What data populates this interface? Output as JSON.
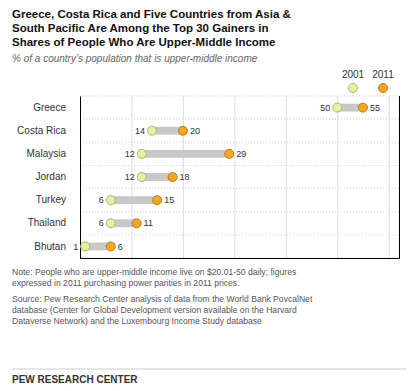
{
  "chart_data": {
    "type": "dumbbell",
    "orientation": "horizontal",
    "title": "Greece, Costa Rica and Five Countries from Asia &\nSouth Pacific Are Among the Top 30 Gainers in\nShares of People Who Are Upper-Middle Income",
    "subtitle": "% of a country’s population that is upper-middle income",
    "annotations": [
      "Note: People who are upper-middle income live on $20.01-50 daily; figures\nexpressed in 2011 purchasing power parities in 2011 prices.",
      "Source: Pew Research Center analysis of data from the World Bank PovcalNet\ndatabase (Center for Global Development version available on the Harvard\nDataverse Network) and the Luxembourg Income Study database",
      "PEW RESEARCH CENTER"
    ],
    "categories": [
      "Greece",
      "Costa Rica",
      "Malaysia",
      "Jordan",
      "Turkey",
      "Thailand",
      "Bhutan"
    ],
    "series": [
      {
        "name": "2001",
        "color": "#e8ef9e",
        "values": [
          50,
          14,
          12,
          12,
          6,
          6,
          1
        ]
      },
      {
        "name": "2011",
        "color": "#f5a623",
        "values": [
          55,
          20,
          29,
          18,
          15,
          11,
          6
        ]
      }
    ],
    "color": "#c8c8c8",
    "xlim": [
      0,
      62
    ],
    "xticks": [
      0,
      10,
      20,
      30,
      40,
      50,
      60
    ],
    "grid": true,
    "legend": "top-right",
    "data_labels": true,
    "tick_labels": "y"
  }
}
